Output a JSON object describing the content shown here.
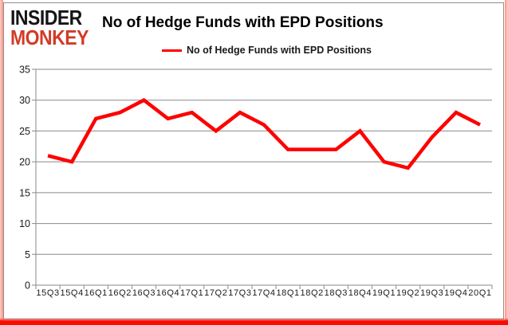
{
  "brand": {
    "line1": "INSIDER",
    "line2": "MONKEY"
  },
  "header": {
    "title": "No of Hedge Funds with EPD Positions"
  },
  "legend": {
    "label": "No of Hedge Funds with EPD Positions"
  },
  "colors": {
    "series": "#fe0000",
    "grid": "#8a8a8a",
    "axis_text": "#1a1a1a",
    "brand_black": "#151515",
    "brand_red": "#d13b28",
    "frame_red": "#f90c00"
  },
  "chart_data": {
    "type": "line",
    "title": "No of Hedge Funds with EPD Positions",
    "xlabel": "",
    "ylabel": "",
    "categories": [
      "15Q3",
      "15Q4",
      "16Q1",
      "16Q2",
      "16Q3",
      "16Q4",
      "17Q1",
      "17Q2",
      "17Q3",
      "17Q4",
      "18Q1",
      "18Q2",
      "18Q3",
      "18Q4",
      "19Q1",
      "19Q2",
      "19Q3",
      "19Q4",
      "20Q1"
    ],
    "series": [
      {
        "name": "No of Hedge Funds with EPD Positions",
        "values": [
          21,
          20,
          27,
          28,
          30,
          27,
          28,
          25,
          28,
          26,
          22,
          22,
          22,
          25,
          20,
          19,
          24,
          28,
          26
        ]
      }
    ],
    "ylim": [
      0,
      35
    ],
    "ytick_step": 5,
    "yticks": [
      0,
      5,
      10,
      15,
      20,
      25,
      30,
      35
    ],
    "grid": true,
    "legend_position": "top-center"
  }
}
